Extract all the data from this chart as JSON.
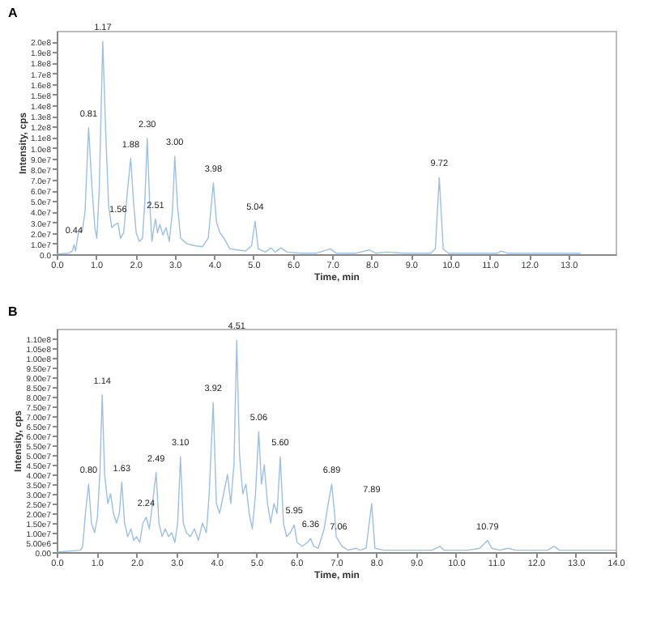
{
  "chart_data": [
    {
      "type": "line",
      "title": "A",
      "xlabel": "Time, min",
      "ylabel": "Intensity, cps",
      "xlim": [
        0,
        14.2
      ],
      "xticks": [
        {
          "value": 0,
          "label": "0.0"
        },
        {
          "value": 1,
          "label": "1.0"
        },
        {
          "value": 2,
          "label": "2.0"
        },
        {
          "value": 3,
          "label": "3.0"
        },
        {
          "value": 4,
          "label": "4.0"
        },
        {
          "value": 5,
          "label": "5.0"
        },
        {
          "value": 6,
          "label": "6.0"
        },
        {
          "value": 7,
          "label": "7.0"
        },
        {
          "value": 8,
          "label": "8.0"
        },
        {
          "value": 9,
          "label": "9.0"
        },
        {
          "value": 10,
          "label": "10.0"
        },
        {
          "value": 11,
          "label": "11.0"
        },
        {
          "value": 12,
          "label": "12.0"
        },
        {
          "value": 13,
          "label": "13.0"
        }
      ],
      "ylim": [
        0,
        210000000.0
      ],
      "yticks": [
        {
          "value": 0,
          "label": "0.0"
        },
        {
          "value": 10000000.0,
          "label": "1.0e7"
        },
        {
          "value": 20000000.0,
          "label": "2.0e7"
        },
        {
          "value": 30000000.0,
          "label": "3.0e7"
        },
        {
          "value": 40000000.0,
          "label": "4.0e7"
        },
        {
          "value": 50000000.0,
          "label": "5.0e7"
        },
        {
          "value": 60000000.0,
          "label": "6.0e7"
        },
        {
          "value": 70000000.0,
          "label": "7.0e7"
        },
        {
          "value": 80000000.0,
          "label": "8.0e7"
        },
        {
          "value": 90000000.0,
          "label": "9.0e7"
        },
        {
          "value": 100000000.0,
          "label": "1.0e8"
        },
        {
          "value": 110000000.0,
          "label": "1.1e8"
        },
        {
          "value": 120000000.0,
          "label": "1.2e8"
        },
        {
          "value": 130000000.0,
          "label": "1.3e8"
        },
        {
          "value": 140000000.0,
          "label": "1.4e8"
        },
        {
          "value": 150000000.0,
          "label": "1.5e8"
        },
        {
          "value": 160000000.0,
          "label": "1.6e8"
        },
        {
          "value": 170000000.0,
          "label": "1.7e8"
        },
        {
          "value": 180000000.0,
          "label": "1.8e8"
        },
        {
          "value": 190000000.0,
          "label": "1.9e8"
        },
        {
          "value": 200000000.0,
          "label": "2.0e8"
        }
      ],
      "grid": false,
      "series": [
        {
          "color": "#9fbfe0",
          "x": [
            0,
            0.3,
            0.4,
            0.44,
            0.48,
            0.55,
            0.65,
            0.72,
            0.81,
            0.9,
            0.97,
            1.02,
            1.08,
            1.17,
            1.25,
            1.32,
            1.4,
            1.48,
            1.56,
            1.62,
            1.7,
            1.8,
            1.88,
            1.95,
            2.02,
            2.1,
            2.18,
            2.24,
            2.3,
            2.36,
            2.42,
            2.47,
            2.51,
            2.56,
            2.62,
            2.7,
            2.78,
            2.86,
            2.94,
            3.0,
            3.07,
            3.15,
            3.3,
            3.5,
            3.7,
            3.85,
            3.98,
            4.06,
            4.15,
            4.25,
            4.4,
            4.6,
            4.8,
            4.95,
            5.04,
            5.12,
            5.3,
            5.45,
            5.55,
            5.7,
            5.85,
            6.2,
            6.6,
            6.95,
            7.1,
            7.6,
            7.95,
            8.1,
            8.4,
            8.8,
            9.5,
            9.62,
            9.72,
            9.82,
            9.95,
            10.5,
            11.2,
            11.3,
            11.45,
            12.5,
            13.3
          ],
          "values": [
            0,
            1000000.0,
            3000000.0,
            9000000.0,
            3000000.0,
            20000000.0,
            22000000.0,
            40000000.0,
            119000000.0,
            60000000.0,
            25000000.0,
            15000000.0,
            60000000.0,
            200000000.0,
            110000000.0,
            45000000.0,
            25000000.0,
            28000000.0,
            29000000.0,
            15000000.0,
            20000000.0,
            60000000.0,
            90000000.0,
            50000000.0,
            20000000.0,
            12000000.0,
            15000000.0,
            50000000.0,
            109000000.0,
            50000000.0,
            12000000.0,
            25000000.0,
            33000000.0,
            20000000.0,
            28000000.0,
            18000000.0,
            25000000.0,
            12000000.0,
            40000000.0,
            92000000.0,
            45000000.0,
            15000000.0,
            10000000.0,
            8000000.0,
            7000000.0,
            15000000.0,
            67000000.0,
            30000000.0,
            20000000.0,
            15000000.0,
            5000000.0,
            4000000.0,
            3000000.0,
            8000000.0,
            31000000.0,
            5000000.0,
            2000000.0,
            6000000.0,
            2000000.0,
            6000000.0,
            2000000.0,
            1000000.0,
            1000000.0,
            5000000.0,
            1000000.0,
            1000000.0,
            4000000.0,
            1000000.0,
            2000000.0,
            1000000.0,
            1000000.0,
            5000000.0,
            72000000.0,
            5000000.0,
            1000000.0,
            1000000.0,
            1000000.0,
            3000000.0,
            1000000.0,
            1000000.0,
            1000000.0
          ]
        }
      ],
      "annotations": [
        {
          "text": "0.44",
          "x": 0.44,
          "y": 9000000.0
        },
        {
          "text": "0.81",
          "x": 0.81,
          "y": 119000000.0
        },
        {
          "text": "1.17",
          "x": 1.17,
          "y": 200000000.0
        },
        {
          "text": "1.56",
          "x": 1.56,
          "y": 29000000.0
        },
        {
          "text": "1.88",
          "x": 1.88,
          "y": 90000000.0
        },
        {
          "text": "2.30",
          "x": 2.3,
          "y": 109000000.0
        },
        {
          "text": "2.51",
          "x": 2.51,
          "y": 33000000.0
        },
        {
          "text": "3.00",
          "x": 3.0,
          "y": 92000000.0
        },
        {
          "text": "3.98",
          "x": 3.98,
          "y": 67000000.0
        },
        {
          "text": "5.04",
          "x": 5.04,
          "y": 31000000.0
        },
        {
          "text": "9.72",
          "x": 9.72,
          "y": 72000000.0
        }
      ]
    },
    {
      "type": "line",
      "title": "B",
      "xlabel": "Time, min",
      "ylabel": "Intensity, cps",
      "xlim": [
        0,
        14
      ],
      "xticks": [
        {
          "value": 0,
          "label": "0.0"
        },
        {
          "value": 1,
          "label": "1.0"
        },
        {
          "value": 2,
          "label": "2.0"
        },
        {
          "value": 3,
          "label": "3.0"
        },
        {
          "value": 4,
          "label": "4.0"
        },
        {
          "value": 5,
          "label": "5.0"
        },
        {
          "value": 6,
          "label": "6.0"
        },
        {
          "value": 7,
          "label": "7.0"
        },
        {
          "value": 8,
          "label": "8.0"
        },
        {
          "value": 9,
          "label": "9.0"
        },
        {
          "value": 10,
          "label": "10.0"
        },
        {
          "value": 11,
          "label": "11.0"
        },
        {
          "value": 12,
          "label": "12.0"
        },
        {
          "value": 13,
          "label": "13.0"
        },
        {
          "value": 14,
          "label": "14.0"
        }
      ],
      "ylim": [
        0,
        115000000.0
      ],
      "yticks": [
        {
          "value": 0,
          "label": "0.00"
        },
        {
          "value": 5000000.0,
          "label": "5.00e6"
        },
        {
          "value": 10000000.0,
          "label": "1.00e7"
        },
        {
          "value": 15000000.0,
          "label": "1.50e7"
        },
        {
          "value": 20000000.0,
          "label": "2.00e7"
        },
        {
          "value": 25000000.0,
          "label": "2.50e7"
        },
        {
          "value": 30000000.0,
          "label": "3.00e7"
        },
        {
          "value": 35000000.0,
          "label": "3.50e7"
        },
        {
          "value": 40000000.0,
          "label": "4.00e7"
        },
        {
          "value": 45000000.0,
          "label": "4.50e7"
        },
        {
          "value": 50000000.0,
          "label": "5.00e7"
        },
        {
          "value": 55000000.0,
          "label": "5.50e7"
        },
        {
          "value": 60000000.0,
          "label": "6.00e7"
        },
        {
          "value": 65000000.0,
          "label": "6.50e7"
        },
        {
          "value": 70000000.0,
          "label": "7.00e7"
        },
        {
          "value": 75000000.0,
          "label": "7.50e7"
        },
        {
          "value": 80000000.0,
          "label": "8.00e7"
        },
        {
          "value": 85000000.0,
          "label": "8.50e7"
        },
        {
          "value": 90000000.0,
          "label": "9.00e7"
        },
        {
          "value": 95000000.0,
          "label": "9.50e7"
        },
        {
          "value": 100000000.0,
          "label": "1.00e8"
        },
        {
          "value": 105000000.0,
          "label": "1.05e8"
        },
        {
          "value": 110000000.0,
          "label": "1.10e8"
        }
      ],
      "grid": false,
      "series": [
        {
          "color": "#9fbfe0",
          "x": [
            0,
            0.6,
            0.65,
            0.72,
            0.8,
            0.87,
            0.95,
            1.02,
            1.08,
            1.14,
            1.2,
            1.28,
            1.35,
            1.42,
            1.5,
            1.57,
            1.63,
            1.7,
            1.78,
            1.86,
            1.93,
            2.0,
            2.08,
            2.16,
            2.24,
            2.32,
            2.4,
            2.49,
            2.56,
            2.64,
            2.72,
            2.8,
            2.88,
            2.96,
            3.03,
            3.1,
            3.17,
            3.25,
            3.35,
            3.45,
            3.55,
            3.65,
            3.75,
            3.82,
            3.92,
            4.0,
            4.08,
            4.18,
            4.28,
            4.36,
            4.44,
            4.51,
            4.58,
            4.66,
            4.74,
            4.82,
            4.9,
            4.98,
            5.06,
            5.13,
            5.2,
            5.28,
            5.36,
            5.44,
            5.52,
            5.6,
            5.68,
            5.76,
            5.85,
            5.95,
            6.02,
            6.15,
            6.28,
            6.36,
            6.44,
            6.55,
            6.7,
            6.8,
            6.89,
            6.96,
            7.0,
            7.06,
            7.15,
            7.3,
            7.5,
            7.6,
            7.75,
            7.89,
            7.97,
            8.2,
            8.6,
            9.0,
            9.4,
            9.6,
            9.7,
            10.3,
            10.6,
            10.79,
            10.9,
            11.1,
            11.3,
            11.5,
            12.3,
            12.45,
            12.6,
            14.0
          ],
          "values": [
            0,
            1000000.0,
            3000000.0,
            20000000.0,
            35000000.0,
            15000000.0,
            10000000.0,
            18000000.0,
            40000000.0,
            81000000.0,
            40000000.0,
            25000000.0,
            30000000.0,
            20000000.0,
            15000000.0,
            20000000.0,
            36000000.0,
            15000000.0,
            8000000.0,
            12000000.0,
            6000000.0,
            8000000.0,
            5000000.0,
            15000000.0,
            18000000.0,
            12000000.0,
            25000000.0,
            41000000.0,
            15000000.0,
            8000000.0,
            12000000.0,
            8000000.0,
            10000000.0,
            5000000.0,
            15000000.0,
            49000000.0,
            15000000.0,
            10000000.0,
            8000000.0,
            12000000.0,
            6000000.0,
            15000000.0,
            10000000.0,
            30000000.0,
            77000000.0,
            25000000.0,
            20000000.0,
            30000000.0,
            40000000.0,
            25000000.0,
            45000000.0,
            109000000.0,
            50000000.0,
            30000000.0,
            35000000.0,
            20000000.0,
            12000000.0,
            30000000.0,
            62000000.0,
            35000000.0,
            45000000.0,
            25000000.0,
            15000000.0,
            25000000.0,
            20000000.0,
            49000000.0,
            15000000.0,
            8000000.0,
            10000000.0,
            14000000.0,
            5000000.0,
            3000000.0,
            5000000.0,
            7000000.0,
            3000000.0,
            2000000.0,
            12000000.0,
            25000000.0,
            35000000.0,
            20000000.0,
            8000000.0,
            6000000.0,
            3000000.0,
            1000000.0,
            2000000.0,
            1000000.0,
            2000000.0,
            25000000.0,
            2000000.0,
            1000000.0,
            1000000.0,
            1000000.0,
            1000000.0,
            3000000.0,
            1000000.0,
            1000000.0,
            2000000.0,
            6000000.0,
            2000000.0,
            1000000.0,
            2000000.0,
            1000000.0,
            1000000.0,
            3000000.0,
            1000000.0,
            1000000.0
          ]
        }
      ],
      "annotations": [
        {
          "text": "0.80",
          "x": 0.8,
          "y": 35000000.0
        },
        {
          "text": "1.14",
          "x": 1.14,
          "y": 81000000.0
        },
        {
          "text": "1.63",
          "x": 1.63,
          "y": 36000000.0
        },
        {
          "text": "2.24",
          "x": 2.24,
          "y": 18000000.0
        },
        {
          "text": "2.49",
          "x": 2.49,
          "y": 41000000.0
        },
        {
          "text": "3.10",
          "x": 3.1,
          "y": 49000000.0
        },
        {
          "text": "3.92",
          "x": 3.92,
          "y": 77000000.0
        },
        {
          "text": "4.51",
          "x": 4.51,
          "y": 109000000.0
        },
        {
          "text": "5.06",
          "x": 5.06,
          "y": 62000000.0
        },
        {
          "text": "5.60",
          "x": 5.6,
          "y": 49000000.0
        },
        {
          "text": "5.95",
          "x": 5.95,
          "y": 14000000.0
        },
        {
          "text": "6.36",
          "x": 6.36,
          "y": 7000000.0
        },
        {
          "text": "6.89",
          "x": 6.89,
          "y": 35000000.0
        },
        {
          "text": "7.06",
          "x": 7.06,
          "y": 6000000.0
        },
        {
          "text": "7.89",
          "x": 7.89,
          "y": 25000000.0
        },
        {
          "text": "10.79",
          "x": 10.79,
          "y": 6000000.0
        }
      ]
    }
  ]
}
